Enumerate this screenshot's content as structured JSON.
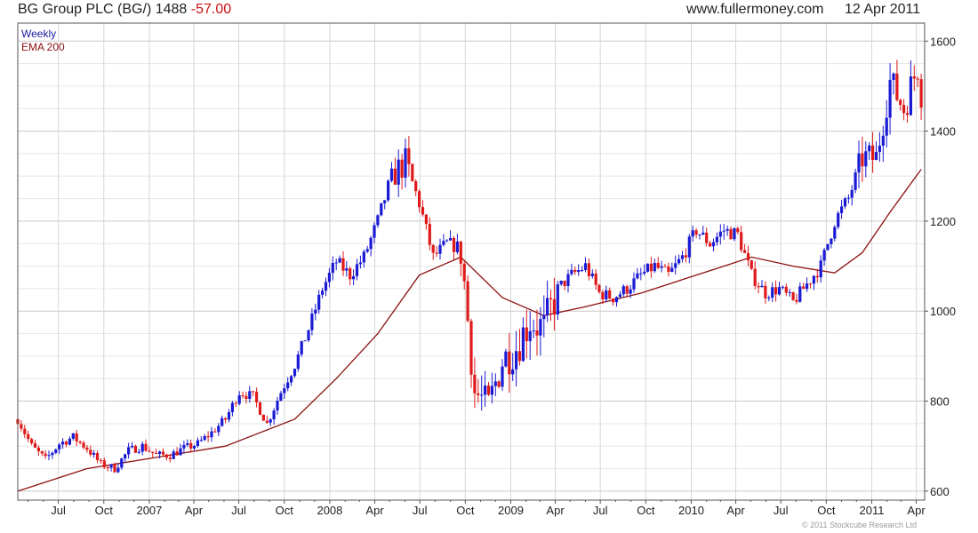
{
  "header": {
    "title": "BG Group PLC (BG/)",
    "last": "1488",
    "change": "-57.00",
    "site": "www.fullermoney.com",
    "date": "12 Apr 2011"
  },
  "legend": {
    "weekly": "Weekly",
    "ema": "EMA 200"
  },
  "copyright": "© 2011 Stockcube Research Ltd",
  "colors": {
    "up": "#1a1ad4",
    "down": "#e01a1a",
    "ema": "#8b1010",
    "grid": "#d8d8d8",
    "frame": "#555555"
  },
  "chart_data": {
    "type": "candlestick",
    "title": "BG Group PLC (BG/)",
    "interval": "Weekly",
    "ylim": [
      580,
      1640
    ],
    "y_ticks": [
      600,
      800,
      1000,
      1200,
      1400,
      1600
    ],
    "x_tick_labels": [
      "Jul",
      "Oct",
      "2007",
      "Apr",
      "Jul",
      "Oct",
      "2008",
      "Apr",
      "Jul",
      "Oct",
      "2009",
      "Apr",
      "Jul",
      "Oct",
      "2010",
      "Apr",
      "Jul",
      "Oct",
      "2011",
      "Apr"
    ],
    "x_range": [
      "2006-04-10",
      "2011-04-18"
    ],
    "grid": true,
    "legend_placement": "top-left",
    "price_path": [
      [
        "2006-04-10",
        760
      ],
      [
        "2006-05-08",
        700
      ],
      [
        "2006-06-05",
        670
      ],
      [
        "2006-07-03",
        705
      ],
      [
        "2006-07-31",
        720
      ],
      [
        "2006-08-28",
        695
      ],
      [
        "2006-09-25",
        660
      ],
      [
        "2006-10-23",
        650
      ],
      [
        "2006-11-20",
        690
      ],
      [
        "2006-12-18",
        700
      ],
      [
        "2007-01-15",
        680
      ],
      [
        "2007-02-12",
        680
      ],
      [
        "2007-03-12",
        695
      ],
      [
        "2007-04-09",
        705
      ],
      [
        "2007-05-07",
        730
      ],
      [
        "2007-06-04",
        760
      ],
      [
        "2007-07-02",
        820
      ],
      [
        "2007-07-30",
        810
      ],
      [
        "2007-08-27",
        750
      ],
      [
        "2007-09-24",
        820
      ],
      [
        "2007-10-22",
        880
      ],
      [
        "2007-11-19",
        960
      ],
      [
        "2007-12-17",
        1050
      ],
      [
        "2008-01-14",
        1110
      ],
      [
        "2008-02-11",
        1080
      ],
      [
        "2008-03-10",
        1120
      ],
      [
        "2008-04-07",
        1200
      ],
      [
        "2008-05-05",
        1300
      ],
      [
        "2008-06-02",
        1330
      ],
      [
        "2008-06-30",
        1240
      ],
      [
        "2008-07-28",
        1120
      ],
      [
        "2008-08-25",
        1150
      ],
      [
        "2008-09-22",
        1140
      ],
      [
        "2008-10-20",
        820
      ],
      [
        "2008-11-17",
        790
      ],
      [
        "2008-12-15",
        890
      ],
      [
        "2009-01-12",
        920
      ],
      [
        "2009-02-09",
        980
      ],
      [
        "2009-03-09",
        960
      ],
      [
        "2009-04-06",
        1050
      ],
      [
        "2009-05-04",
        1080
      ],
      [
        "2009-06-01",
        1100
      ],
      [
        "2009-06-29",
        1040
      ],
      [
        "2009-07-27",
        1030
      ],
      [
        "2009-08-24",
        1050
      ],
      [
        "2009-09-21",
        1080
      ],
      [
        "2009-10-19",
        1100
      ],
      [
        "2009-11-16",
        1080
      ],
      [
        "2009-12-14",
        1120
      ],
      [
        "2010-01-11",
        1180
      ],
      [
        "2010-02-08",
        1150
      ],
      [
        "2010-03-08",
        1180
      ],
      [
        "2010-04-05",
        1170
      ],
      [
        "2010-05-03",
        1080
      ],
      [
        "2010-05-31",
        1040
      ],
      [
        "2010-06-28",
        1050
      ],
      [
        "2010-07-26",
        1020
      ],
      [
        "2010-08-23",
        1060
      ],
      [
        "2010-09-20",
        1100
      ],
      [
        "2010-10-18",
        1200
      ],
      [
        "2010-11-15",
        1250
      ],
      [
        "2010-12-13",
        1340
      ],
      [
        "2011-01-10",
        1340
      ],
      [
        "2011-02-07",
        1510
      ],
      [
        "2011-03-07",
        1450
      ],
      [
        "2011-04-04",
        1545
      ],
      [
        "2011-04-11",
        1488
      ]
    ],
    "ema_path": [
      [
        "2006-04-10",
        600
      ],
      [
        "2006-08-28",
        650
      ],
      [
        "2007-01-15",
        675
      ],
      [
        "2007-06-04",
        700
      ],
      [
        "2007-10-22",
        760
      ],
      [
        "2008-01-14",
        850
      ],
      [
        "2008-04-07",
        950
      ],
      [
        "2008-06-30",
        1080
      ],
      [
        "2008-09-22",
        1120
      ],
      [
        "2008-12-15",
        1030
      ],
      [
        "2009-03-09",
        990
      ],
      [
        "2009-06-01",
        1010
      ],
      [
        "2009-09-21",
        1040
      ],
      [
        "2009-12-14",
        1070
      ],
      [
        "2010-03-08",
        1100
      ],
      [
        "2010-05-03",
        1120
      ],
      [
        "2010-07-26",
        1100
      ],
      [
        "2010-10-18",
        1085
      ],
      [
        "2010-12-13",
        1130
      ],
      [
        "2011-02-07",
        1220
      ],
      [
        "2011-04-11",
        1315
      ]
    ]
  }
}
